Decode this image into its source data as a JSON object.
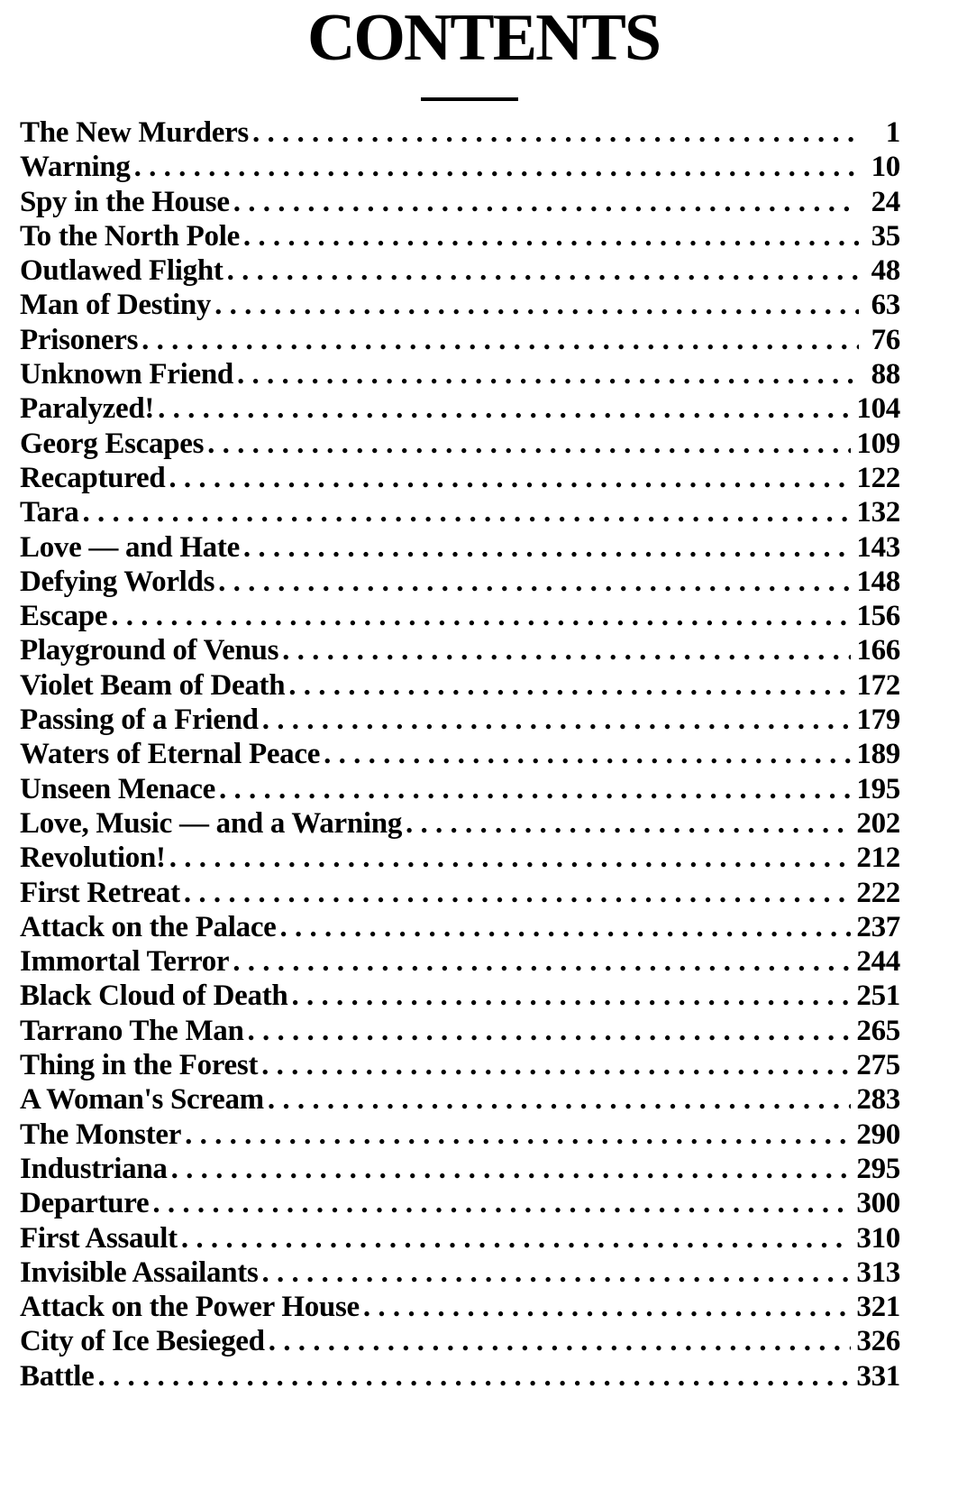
{
  "title": "CONTENTS",
  "entries": [
    {
      "title": "The New Murders",
      "page": "1"
    },
    {
      "title": "Warning",
      "page": "10"
    },
    {
      "title": "Spy in the House",
      "page": "24"
    },
    {
      "title": "To the North Pole",
      "page": "35"
    },
    {
      "title": "Outlawed Flight",
      "page": "48"
    },
    {
      "title": "Man of Destiny",
      "page": "63"
    },
    {
      "title": "Prisoners",
      "page": "76"
    },
    {
      "title": "Unknown Friend",
      "page": "88"
    },
    {
      "title": "Paralyzed!",
      "page": "104"
    },
    {
      "title": "Georg Escapes",
      "page": "109"
    },
    {
      "title": "Recaptured",
      "page": "122"
    },
    {
      "title": "Tara",
      "page": "132"
    },
    {
      "title": "Love — and Hate",
      "page": "143"
    },
    {
      "title": "Defying Worlds",
      "page": "148"
    },
    {
      "title": "Escape",
      "page": "156"
    },
    {
      "title": "Playground of Venus",
      "page": "166"
    },
    {
      "title": "Violet Beam of Death",
      "page": "172"
    },
    {
      "title": "Passing of a Friend",
      "page": "179"
    },
    {
      "title": "Waters of Eternal Peace",
      "page": "189"
    },
    {
      "title": "Unseen Menace",
      "page": "195"
    },
    {
      "title": "Love, Music — and a Warning",
      "page": "202"
    },
    {
      "title": "Revolution!",
      "page": "212"
    },
    {
      "title": "First Retreat",
      "page": "222"
    },
    {
      "title": "Attack on the Palace",
      "page": "237"
    },
    {
      "title": "Immortal Terror",
      "page": "244"
    },
    {
      "title": "Black Cloud of Death",
      "page": "251"
    },
    {
      "title": "Tarrano The Man",
      "page": "265"
    },
    {
      "title": "Thing in the Forest",
      "page": "275"
    },
    {
      "title": "A Woman's Scream",
      "page": "283"
    },
    {
      "title": "The Monster",
      "page": "290"
    },
    {
      "title": "Industriana",
      "page": "295"
    },
    {
      "title": "Departure",
      "page": "300"
    },
    {
      "title": "First Assault",
      "page": "310"
    },
    {
      "title": "Invisible Assailants",
      "page": "313"
    },
    {
      "title": "Attack on the Power House",
      "page": "321"
    },
    {
      "title": "City of Ice Besieged",
      "page": "326"
    },
    {
      "title": "Battle",
      "page": "331"
    }
  ]
}
